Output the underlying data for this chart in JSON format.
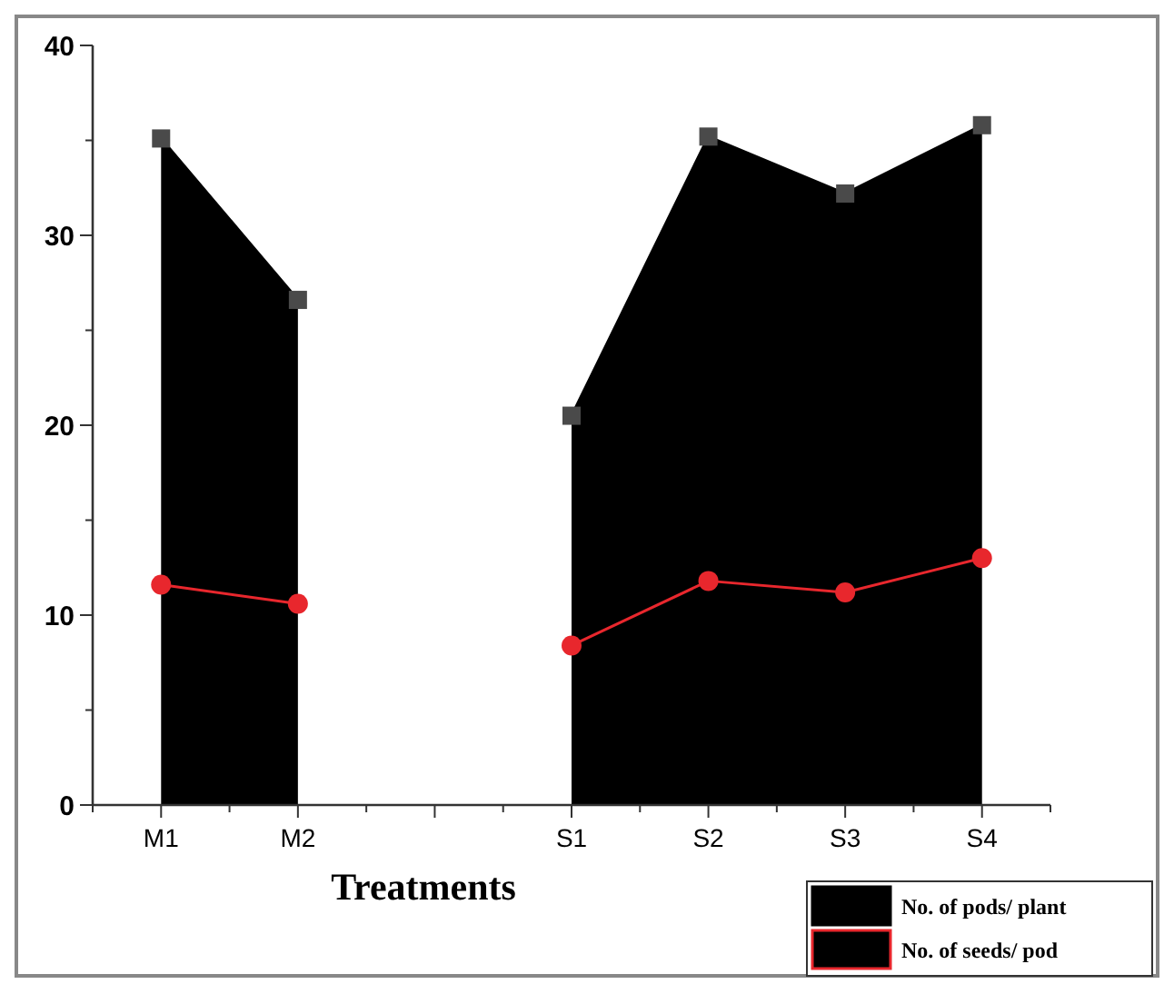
{
  "chart_data": {
    "type": "area",
    "xlabel": "Treatments",
    "categories": [
      "M1",
      "M2",
      null,
      "S1",
      "S2",
      "S3",
      "S4"
    ],
    "series": [
      {
        "name": "No. of pods/ plant",
        "color": "#000000",
        "marker": "square",
        "values": [
          35.1,
          26.6,
          null,
          20.5,
          35.2,
          32.2,
          35.8
        ]
      },
      {
        "name": "No. of seeds/ pod",
        "type": "line",
        "color": "#e8272d",
        "marker": "circle",
        "values": [
          11.6,
          10.6,
          null,
          8.4,
          11.8,
          11.2,
          13.0
        ]
      }
    ],
    "ylim": [
      0,
      40
    ],
    "yticks": [
      0,
      {
        "value": 5,
        "label": null
      },
      10,
      {
        "value": 15,
        "label": null
      },
      20,
      {
        "value": 25,
        "label": null
      },
      30,
      {
        "value": 35,
        "label": null
      },
      40
    ],
    "grid": false,
    "legend": "bottom right"
  }
}
